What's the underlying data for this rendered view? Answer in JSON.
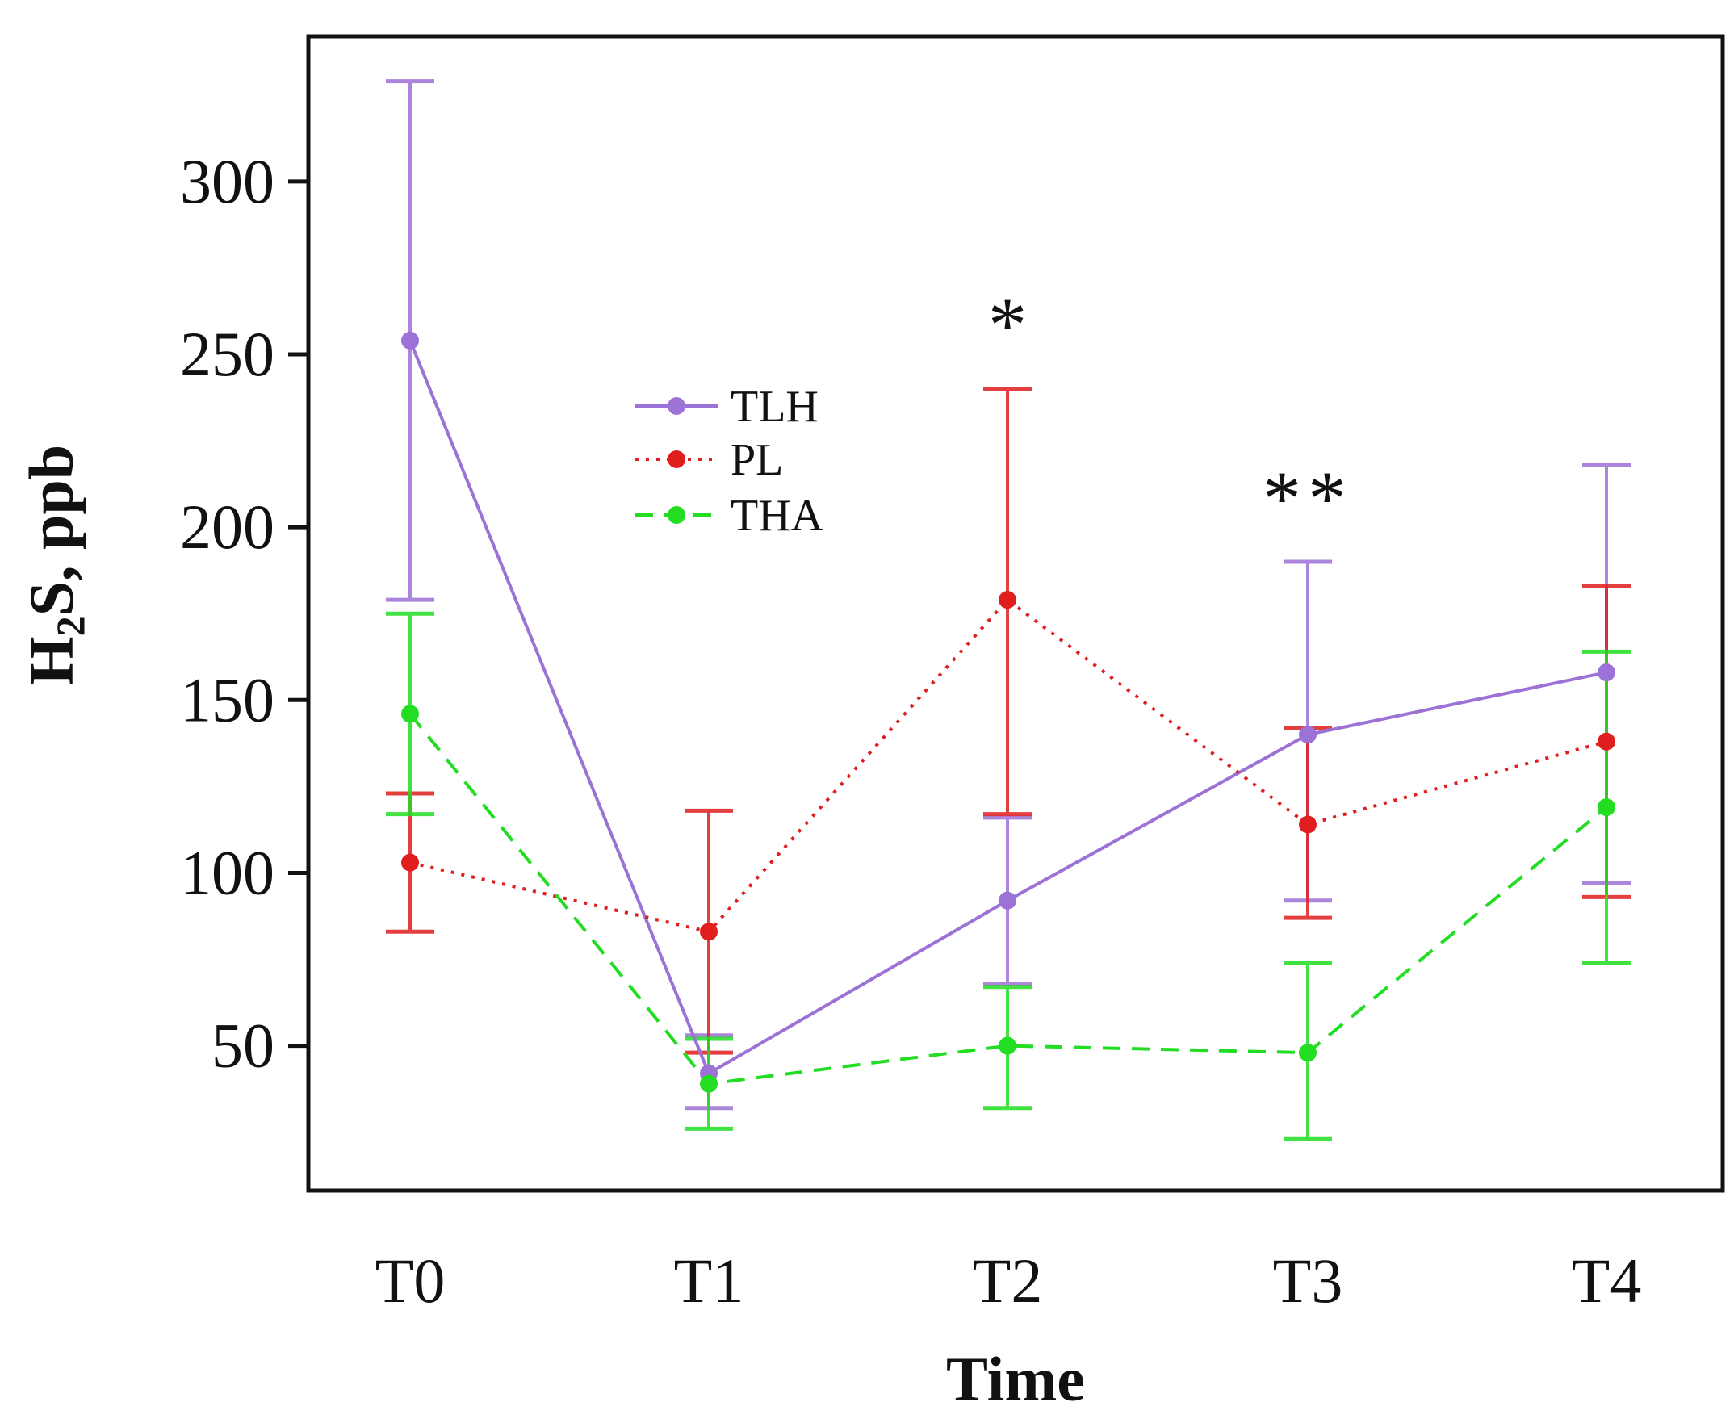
{
  "chart_data": {
    "type": "line",
    "title": "",
    "xlabel": "Time",
    "ylabel_main": "H",
    "ylabel_sub": "2",
    "ylabel_rest": "S, ppb",
    "categories": [
      "T0",
      "T1",
      "T2",
      "T3",
      "T4"
    ],
    "ylim": [
      0,
      340
    ],
    "yticks": [
      50,
      100,
      150,
      200,
      250,
      300
    ],
    "ytick_labels": [
      "50",
      "100",
      "150",
      "200",
      "250",
      "300"
    ],
    "grid": false,
    "legend_position": "upper-left-center",
    "series": [
      {
        "name": "TLH",
        "color": "#9d72d6",
        "dash": "solid",
        "values": [
          254,
          42,
          92,
          140,
          158
        ],
        "err_low": [
          179,
          32,
          68,
          92,
          97
        ],
        "err_high": [
          329,
          53,
          116,
          190,
          218
        ]
      },
      {
        "name": "PL",
        "color": "#e01e1e",
        "dash": "dotted",
        "values": [
          103,
          83,
          179,
          114,
          138
        ],
        "err_low": [
          83,
          48,
          117,
          87,
          93
        ],
        "err_high": [
          123,
          118,
          240,
          142,
          183
        ]
      },
      {
        "name": "THA",
        "color": "#22dd22",
        "dash": "dashed",
        "values": [
          146,
          39,
          50,
          48,
          119
        ],
        "err_low": [
          117,
          26,
          32,
          23,
          74
        ],
        "err_high": [
          175,
          52,
          67,
          74,
          164
        ]
      }
    ],
    "annotations": [
      {
        "category": "T2",
        "text": "*"
      },
      {
        "category": "T3",
        "text": "**"
      }
    ]
  }
}
